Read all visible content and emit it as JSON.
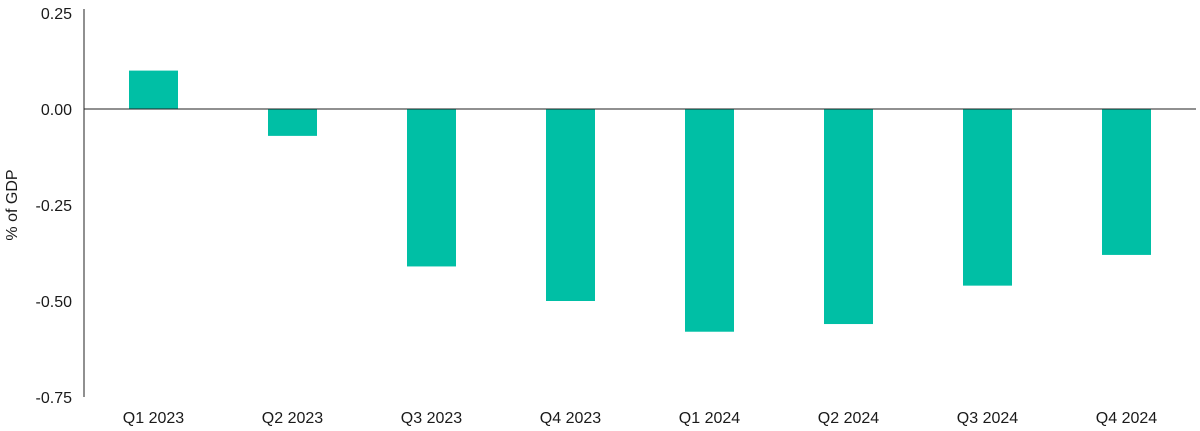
{
  "chart_data": {
    "type": "bar",
    "title": "",
    "xlabel": "",
    "ylabel": "% of GDP",
    "categories": [
      "Q1 2023",
      "Q2 2023",
      "Q3 2023",
      "Q4 2023",
      "Q1 2024",
      "Q2 2024",
      "Q3 2024",
      "Q4 2024"
    ],
    "values": [
      0.1,
      -0.07,
      -0.41,
      -0.5,
      -0.58,
      -0.56,
      -0.46,
      -0.38
    ],
    "ylim": [
      -0.75,
      0.25
    ],
    "yticks": [
      "0.25",
      "0.00",
      "-0.25",
      "-0.50",
      "-0.75"
    ],
    "ytick_values": [
      0.25,
      0.0,
      -0.25,
      -0.5,
      -0.75
    ],
    "grid": false,
    "legend": "none",
    "bar_color": "#00BFA5"
  }
}
